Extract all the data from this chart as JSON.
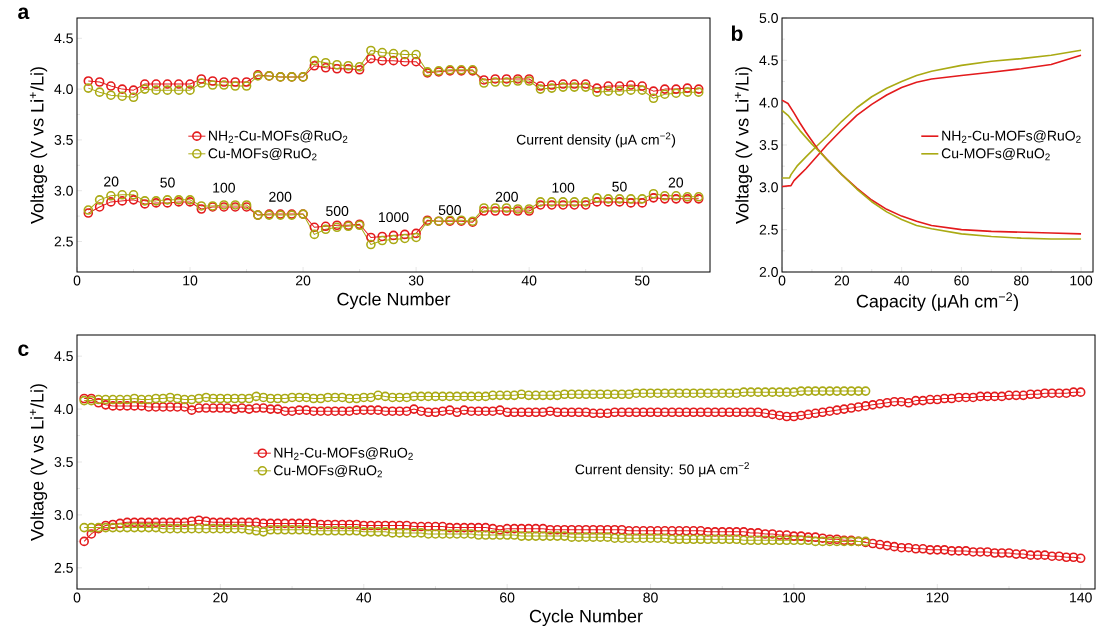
{
  "chart_data": [
    {
      "type": "line",
      "title": "a",
      "xlabel": "Cycle Number",
      "ylabel": "Voltage (V vs Li$^{+}$/Li)",
      "marker": "circle",
      "legend": "left",
      "xlim": [
        0,
        56
      ],
      "ylim": [
        2.2,
        4.7
      ],
      "xticks": [
        0,
        10,
        20,
        30,
        40,
        50
      ],
      "yticks": [
        2.5,
        {
          "value": 3,
          "label": "3.0"
        },
        3.5,
        {
          "value": 4,
          "label": "4.0"
        },
        4.5
      ],
      "x": [
        1,
        2,
        3,
        4,
        5,
        6,
        7,
        8,
        9,
        10,
        11,
        12,
        13,
        14,
        15,
        16,
        17,
        18,
        19,
        20,
        21,
        22,
        23,
        24,
        25,
        26,
        27,
        28,
        29,
        30,
        31,
        32,
        33,
        34,
        35,
        36,
        37,
        38,
        39,
        40,
        41,
        42,
        43,
        44,
        45,
        46,
        47,
        48,
        49,
        50,
        51,
        52,
        53,
        54,
        55
      ],
      "series": [
        {
          "name": "NH$_{2}$-Cu-MOFs@RuO$_{2}$",
          "color": "#e31a1c",
          "values": [
            4.08,
            4.07,
            4.03,
            4.0,
            3.99,
            4.05,
            4.05,
            4.05,
            4.05,
            4.05,
            4.1,
            4.08,
            4.07,
            4.07,
            4.07,
            4.14,
            4.13,
            4.12,
            4.12,
            4.12,
            4.23,
            4.21,
            4.2,
            4.2,
            4.19,
            4.3,
            4.28,
            4.28,
            4.27,
            4.27,
            4.16,
            4.17,
            4.18,
            4.18,
            4.18,
            4.09,
            4.1,
            4.1,
            4.1,
            4.1,
            4.03,
            4.04,
            4.05,
            4.05,
            4.05,
            4.01,
            4.03,
            4.03,
            4.04,
            4.03,
            3.98,
            4.0,
            4.0,
            4.01,
            4.0
          ]
        },
        {
          "name": "Cu-MOFs@RuO$_{2}$",
          "color": "#aaaa14",
          "values": [
            4.01,
            3.97,
            3.94,
            3.93,
            3.92,
            4.0,
            3.99,
            3.99,
            3.99,
            3.99,
            4.06,
            4.04,
            4.04,
            4.03,
            4.03,
            4.13,
            4.13,
            4.12,
            4.12,
            4.12,
            4.28,
            4.26,
            4.24,
            4.23,
            4.22,
            4.38,
            4.36,
            4.35,
            4.34,
            4.34,
            4.17,
            4.18,
            4.19,
            4.19,
            4.19,
            4.06,
            4.07,
            4.07,
            4.08,
            4.08,
            4.0,
            4.01,
            4.02,
            4.02,
            4.02,
            3.97,
            3.98,
            3.98,
            3.99,
            3.99,
            3.91,
            3.95,
            3.96,
            3.97,
            3.97
          ]
        },
        {
          "color": "#e31a1c",
          "values": [
            2.78,
            2.84,
            2.89,
            2.9,
            2.91,
            2.87,
            2.88,
            2.88,
            2.89,
            2.89,
            2.82,
            2.84,
            2.84,
            2.84,
            2.84,
            2.76,
            2.77,
            2.77,
            2.77,
            2.77,
            2.64,
            2.65,
            2.66,
            2.66,
            2.67,
            2.54,
            2.55,
            2.56,
            2.57,
            2.58,
            2.71,
            2.7,
            2.7,
            2.7,
            2.69,
            2.8,
            2.8,
            2.8,
            2.8,
            2.8,
            2.86,
            2.86,
            2.86,
            2.86,
            2.86,
            2.89,
            2.89,
            2.89,
            2.88,
            2.88,
            2.93,
            2.92,
            2.92,
            2.92,
            2.92
          ]
        },
        {
          "color": "#aaaa14",
          "values": [
            2.81,
            2.91,
            2.95,
            2.96,
            2.96,
            2.9,
            2.9,
            2.91,
            2.91,
            2.91,
            2.85,
            2.85,
            2.86,
            2.86,
            2.86,
            2.76,
            2.76,
            2.76,
            2.76,
            2.77,
            2.57,
            2.62,
            2.64,
            2.65,
            2.66,
            2.47,
            2.51,
            2.52,
            2.53,
            2.54,
            2.7,
            2.7,
            2.71,
            2.71,
            2.7,
            2.83,
            2.83,
            2.83,
            2.82,
            2.82,
            2.89,
            2.89,
            2.89,
            2.89,
            2.89,
            2.93,
            2.92,
            2.92,
            2.92,
            2.92,
            2.97,
            2.95,
            2.95,
            2.94,
            2.94
          ]
        }
      ],
      "annotations": [
        "Current density (μA cm$^{−2}$)",
        "20",
        "50",
        "100",
        "200",
        "500",
        "1000",
        "500",
        "200",
        "100",
        "50",
        "20"
      ]
    },
    {
      "type": "line",
      "title": "b",
      "xlabel": "Capacity (μAh cm$^{−2}$)",
      "ylabel": "Voltage (V vs Li$^{+}$/Li)",
      "legend": "right",
      "xlim": [
        0,
        104
      ],
      "ylim": [
        2,
        5
      ],
      "xticks": [
        0,
        20,
        40,
        60,
        80,
        100
      ],
      "yticks": [
        {
          "value": 2,
          "label": "2.0"
        },
        2.5,
        {
          "value": 3,
          "label": "3.0"
        },
        3.5,
        {
          "value": 4,
          "label": "4.0"
        },
        4.5,
        {
          "value": 5,
          "label": "5.0"
        }
      ],
      "series": [
        {
          "name": "NH$_{2}$-Cu-MOFs@RuO$_{2}$",
          "color": "#e31a1c",
          "x": [
            0,
            3,
            4,
            6,
            8,
            10,
            12,
            15,
            20,
            25,
            30,
            35,
            40,
            45,
            50,
            60,
            70,
            80,
            90,
            100
          ],
          "values": [
            3.01,
            3.02,
            3.08,
            3.15,
            3.22,
            3.3,
            3.38,
            3.5,
            3.68,
            3.85,
            3.98,
            4.09,
            4.18,
            4.24,
            4.28,
            4.32,
            4.36,
            4.4,
            4.45,
            4.56
          ]
        },
        {
          "name": "Cu-MOFs@RuO$_{2}$",
          "color": "#aaaa14",
          "x": [
            0,
            2.5,
            3,
            5,
            8,
            10,
            12,
            15,
            20,
            25,
            30,
            35,
            40,
            45,
            50,
            60,
            70,
            80,
            90,
            100
          ],
          "values": [
            3.11,
            3.11,
            3.15,
            3.25,
            3.36,
            3.43,
            3.5,
            3.6,
            3.78,
            3.94,
            4.07,
            4.17,
            4.25,
            4.32,
            4.37,
            4.44,
            4.49,
            4.52,
            4.56,
            4.62
          ]
        },
        {
          "color": "#e31a1c",
          "x": [
            0,
            2,
            4,
            6,
            8,
            10,
            12,
            15,
            20,
            25,
            30,
            35,
            40,
            45,
            50,
            60,
            70,
            80,
            90,
            100
          ],
          "values": [
            4.03,
            3.99,
            3.88,
            3.76,
            3.65,
            3.55,
            3.45,
            3.33,
            3.15,
            2.99,
            2.85,
            2.74,
            2.66,
            2.6,
            2.55,
            2.5,
            2.48,
            2.47,
            2.46,
            2.45
          ]
        },
        {
          "color": "#aaaa14",
          "x": [
            0,
            2,
            4,
            6,
            8,
            10,
            12,
            15,
            20,
            25,
            30,
            35,
            40,
            45,
            50,
            60,
            70,
            80,
            90,
            100
          ],
          "values": [
            3.91,
            3.85,
            3.76,
            3.67,
            3.59,
            3.51,
            3.44,
            3.33,
            3.15,
            2.98,
            2.83,
            2.71,
            2.62,
            2.55,
            2.51,
            2.45,
            2.42,
            2.4,
            2.39,
            2.39
          ]
        }
      ]
    },
    {
      "type": "line",
      "title": "c",
      "xlabel": "Cycle Number",
      "ylabel": "Voltage (V vs Li$^{+}$/Li)",
      "marker": "circle",
      "legend": "left",
      "xlim": [
        0,
        142
      ],
      "ylim": [
        2.3,
        4.7
      ],
      "xticks": [
        0,
        20,
        40,
        60,
        80,
        100,
        120,
        140
      ],
      "yticks": [
        2.5,
        {
          "value": 3,
          "label": "3.0"
        },
        3.5,
        {
          "value": 4,
          "label": "4.0"
        },
        4.5
      ],
      "series": [
        {
          "name": "NH$_{2}$-Cu-MOFs@RuO$_{2}$",
          "color": "#e31a1c",
          "x": [
            1,
            2,
            3,
            4,
            5,
            6,
            7,
            8,
            9,
            10,
            11,
            12,
            13,
            14,
            15,
            16,
            17,
            18,
            19,
            20,
            21,
            22,
            23,
            24,
            25,
            26,
            27,
            28,
            29,
            30,
            31,
            32,
            33,
            34,
            35,
            36,
            37,
            38,
            39,
            40,
            41,
            42,
            43,
            44,
            45,
            46,
            47,
            48,
            49,
            50,
            51,
            52,
            53,
            54,
            55,
            56,
            57,
            58,
            59,
            60,
            61,
            62,
            63,
            64,
            65,
            66,
            67,
            68,
            69,
            70,
            71,
            72,
            73,
            74,
            75,
            76,
            77,
            78,
            79,
            80,
            81,
            82,
            83,
            84,
            85,
            86,
            87,
            88,
            89,
            90,
            91,
            92,
            93,
            94,
            95,
            96,
            97,
            98,
            99,
            100,
            101,
            102,
            103,
            104,
            105,
            106,
            107,
            108,
            109,
            110,
            111,
            112,
            113,
            114,
            115,
            116,
            117,
            118,
            119,
            120,
            121,
            122,
            123,
            124,
            125,
            126,
            127,
            128,
            129,
            130,
            131,
            132,
            133,
            134,
            135,
            136,
            137,
            138,
            139,
            140
          ],
          "values": [
            4.1,
            4.1,
            4.06,
            4.04,
            4.03,
            4.03,
            4.03,
            4.03,
            4.03,
            4.02,
            4.02,
            4.02,
            4.02,
            4.02,
            4.02,
            3.99,
            4.01,
            4.01,
            4.01,
            4.01,
            4.01,
            4.0,
            4.01,
            4.0,
            4.01,
            4.01,
            4.0,
            4.0,
            3.98,
            3.98,
            3.99,
            3.99,
            3.98,
            3.98,
            3.98,
            3.98,
            3.98,
            3.98,
            3.99,
            3.99,
            3.99,
            3.99,
            3.98,
            3.98,
            3.98,
            3.98,
            4.0,
            3.98,
            3.97,
            3.97,
            3.98,
            3.99,
            3.97,
            3.99,
            3.98,
            3.98,
            3.98,
            3.98,
            3.99,
            3.97,
            3.97,
            3.97,
            3.97,
            3.97,
            3.97,
            3.98,
            3.97,
            3.97,
            3.97,
            3.97,
            3.97,
            3.96,
            3.96,
            3.96,
            3.97,
            3.97,
            3.97,
            3.97,
            3.97,
            3.97,
            3.97,
            3.97,
            3.97,
            3.97,
            3.97,
            3.97,
            3.97,
            3.97,
            3.97,
            3.97,
            3.97,
            3.97,
            3.97,
            3.97,
            3.97,
            3.96,
            3.95,
            3.94,
            3.93,
            3.93,
            3.94,
            3.95,
            3.96,
            3.97,
            3.98,
            3.99,
            4.0,
            4.01,
            4.02,
            4.03,
            4.04,
            4.05,
            4.06,
            4.07,
            4.07,
            4.06,
            4.08,
            4.08,
            4.09,
            4.09,
            4.1,
            4.1,
            4.11,
            4.11,
            4.11,
            4.12,
            4.12,
            4.12,
            4.12,
            4.13,
            4.13,
            4.13,
            4.14,
            4.14,
            4.15,
            4.15,
            4.15,
            4.15,
            4.16,
            4.16
          ]
        },
        {
          "name": "Cu-MOFs@RuO$_{2}$",
          "color": "#aaaa14",
          "x": [
            1,
            2,
            3,
            4,
            5,
            6,
            7,
            8,
            9,
            10,
            11,
            12,
            13,
            14,
            15,
            16,
            17,
            18,
            19,
            20,
            21,
            22,
            23,
            24,
            25,
            26,
            27,
            28,
            29,
            30,
            31,
            32,
            33,
            34,
            35,
            36,
            37,
            38,
            39,
            40,
            41,
            42,
            43,
            44,
            45,
            46,
            47,
            48,
            49,
            50,
            51,
            52,
            53,
            54,
            55,
            56,
            57,
            58,
            59,
            60,
            61,
            62,
            63,
            64,
            65,
            66,
            67,
            68,
            69,
            70,
            71,
            72,
            73,
            74,
            75,
            76,
            77,
            78,
            79,
            80,
            81,
            82,
            83,
            84,
            85,
            86,
            87,
            88,
            89,
            90,
            91,
            92,
            93,
            94,
            95,
            96,
            97,
            98,
            99,
            100,
            101,
            102,
            103,
            104,
            105,
            106,
            107,
            108,
            109,
            110
          ],
          "values": [
            4.08,
            4.08,
            4.09,
            4.09,
            4.09,
            4.09,
            4.09,
            4.1,
            4.09,
            4.09,
            4.1,
            4.1,
            4.11,
            4.1,
            4.09,
            4.09,
            4.1,
            4.11,
            4.1,
            4.1,
            4.1,
            4.1,
            4.1,
            4.1,
            4.12,
            4.11,
            4.1,
            4.1,
            4.1,
            4.11,
            4.11,
            4.11,
            4.1,
            4.1,
            4.11,
            4.11,
            4.11,
            4.1,
            4.1,
            4.11,
            4.11,
            4.13,
            4.12,
            4.11,
            4.11,
            4.11,
            4.12,
            4.12,
            4.12,
            4.12,
            4.12,
            4.12,
            4.12,
            4.12,
            4.12,
            4.12,
            4.12,
            4.13,
            4.13,
            4.13,
            4.13,
            4.14,
            4.13,
            4.13,
            4.13,
            4.13,
            4.13,
            4.14,
            4.14,
            4.14,
            4.14,
            4.14,
            4.14,
            4.14,
            4.14,
            4.14,
            4.14,
            4.15,
            4.15,
            4.15,
            4.15,
            4.15,
            4.15,
            4.15,
            4.15,
            4.15,
            4.15,
            4.15,
            4.15,
            4.15,
            4.15,
            4.15,
            4.16,
            4.16,
            4.16,
            4.16,
            4.16,
            4.16,
            4.16,
            4.16,
            4.17,
            4.17,
            4.17,
            4.17,
            4.17,
            4.17,
            4.17,
            4.17,
            4.17,
            4.17
          ]
        },
        {
          "color": "#e31a1c",
          "x": [
            1,
            2,
            3,
            4,
            5,
            6,
            7,
            8,
            9,
            10,
            11,
            12,
            13,
            14,
            15,
            16,
            17,
            18,
            19,
            20,
            21,
            22,
            23,
            24,
            25,
            26,
            27,
            28,
            29,
            30,
            31,
            32,
            33,
            34,
            35,
            36,
            37,
            38,
            39,
            40,
            41,
            42,
            43,
            44,
            45,
            46,
            47,
            48,
            49,
            50,
            51,
            52,
            53,
            54,
            55,
            56,
            57,
            58,
            59,
            60,
            61,
            62,
            63,
            64,
            65,
            66,
            67,
            68,
            69,
            70,
            71,
            72,
            73,
            74,
            75,
            76,
            77,
            78,
            79,
            80,
            81,
            82,
            83,
            84,
            85,
            86,
            87,
            88,
            89,
            90,
            91,
            92,
            93,
            94,
            95,
            96,
            97,
            98,
            99,
            100,
            101,
            102,
            103,
            104,
            105,
            106,
            107,
            108,
            109,
            110,
            111,
            112,
            113,
            114,
            115,
            116,
            117,
            118,
            119,
            120,
            121,
            122,
            123,
            124,
            125,
            126,
            127,
            128,
            129,
            130,
            131,
            132,
            133,
            134,
            135,
            136,
            137,
            138,
            139,
            140
          ],
          "values": [
            2.75,
            2.82,
            2.87,
            2.9,
            2.91,
            2.92,
            2.93,
            2.93,
            2.93,
            2.93,
            2.93,
            2.93,
            2.93,
            2.93,
            2.93,
            2.94,
            2.95,
            2.94,
            2.93,
            2.93,
            2.93,
            2.93,
            2.93,
            2.93,
            2.93,
            2.92,
            2.92,
            2.92,
            2.92,
            2.92,
            2.92,
            2.92,
            2.92,
            2.91,
            2.91,
            2.91,
            2.91,
            2.91,
            2.91,
            2.9,
            2.9,
            2.9,
            2.9,
            2.9,
            2.9,
            2.9,
            2.89,
            2.89,
            2.89,
            2.89,
            2.89,
            2.88,
            2.88,
            2.88,
            2.88,
            2.88,
            2.88,
            2.87,
            2.86,
            2.87,
            2.87,
            2.87,
            2.87,
            2.87,
            2.87,
            2.86,
            2.86,
            2.86,
            2.86,
            2.86,
            2.86,
            2.86,
            2.86,
            2.86,
            2.86,
            2.86,
            2.85,
            2.85,
            2.85,
            2.85,
            2.85,
            2.85,
            2.85,
            2.85,
            2.85,
            2.85,
            2.85,
            2.84,
            2.84,
            2.84,
            2.84,
            2.84,
            2.84,
            2.83,
            2.83,
            2.82,
            2.82,
            2.81,
            2.81,
            2.8,
            2.8,
            2.79,
            2.79,
            2.78,
            2.77,
            2.77,
            2.76,
            2.76,
            2.75,
            2.74,
            2.73,
            2.72,
            2.71,
            2.7,
            2.69,
            2.69,
            2.68,
            2.68,
            2.67,
            2.67,
            2.67,
            2.66,
            2.66,
            2.66,
            2.65,
            2.65,
            2.65,
            2.64,
            2.64,
            2.64,
            2.63,
            2.63,
            2.62,
            2.62,
            2.62,
            2.61,
            2.61,
            2.6,
            2.6,
            2.59
          ]
        },
        {
          "color": "#aaaa14",
          "x": [
            1,
            2,
            3,
            4,
            5,
            6,
            7,
            8,
            9,
            10,
            11,
            12,
            13,
            14,
            15,
            16,
            17,
            18,
            19,
            20,
            21,
            22,
            23,
            24,
            25,
            26,
            27,
            28,
            29,
            30,
            31,
            32,
            33,
            34,
            35,
            36,
            37,
            38,
            39,
            40,
            41,
            42,
            43,
            44,
            45,
            46,
            47,
            48,
            49,
            50,
            51,
            52,
            53,
            54,
            55,
            56,
            57,
            58,
            59,
            60,
            61,
            62,
            63,
            64,
            65,
            66,
            67,
            68,
            69,
            70,
            71,
            72,
            73,
            74,
            75,
            76,
            77,
            78,
            79,
            80,
            81,
            82,
            83,
            84,
            85,
            86,
            87,
            88,
            89,
            90,
            91,
            92,
            93,
            94,
            95,
            96,
            97,
            98,
            99,
            100,
            101,
            102,
            103,
            104,
            105,
            106,
            107,
            108,
            109,
            110
          ],
          "values": [
            2.88,
            2.88,
            2.88,
            2.88,
            2.88,
            2.88,
            2.88,
            2.88,
            2.88,
            2.88,
            2.88,
            2.87,
            2.87,
            2.87,
            2.87,
            2.87,
            2.87,
            2.87,
            2.87,
            2.87,
            2.87,
            2.87,
            2.87,
            2.86,
            2.85,
            2.84,
            2.86,
            2.86,
            2.86,
            2.86,
            2.86,
            2.86,
            2.85,
            2.85,
            2.85,
            2.85,
            2.85,
            2.85,
            2.85,
            2.84,
            2.84,
            2.84,
            2.84,
            2.83,
            2.83,
            2.83,
            2.83,
            2.83,
            2.82,
            2.82,
            2.82,
            2.82,
            2.82,
            2.82,
            2.82,
            2.81,
            2.81,
            2.81,
            2.81,
            2.81,
            2.81,
            2.8,
            2.8,
            2.8,
            2.8,
            2.8,
            2.8,
            2.8,
            2.79,
            2.79,
            2.79,
            2.79,
            2.79,
            2.79,
            2.78,
            2.78,
            2.78,
            2.78,
            2.78,
            2.78,
            2.78,
            2.78,
            2.77,
            2.77,
            2.77,
            2.77,
            2.77,
            2.77,
            2.77,
            2.77,
            2.77,
            2.77,
            2.76,
            2.76,
            2.76,
            2.76,
            2.76,
            2.76,
            2.76,
            2.76,
            2.76,
            2.76,
            2.75,
            2.75,
            2.75,
            2.75,
            2.75,
            2.75,
            2.75,
            2.75
          ]
        }
      ],
      "annotations": [
        "Current density: 50 μA cm$^{−2}$"
      ]
    }
  ]
}
